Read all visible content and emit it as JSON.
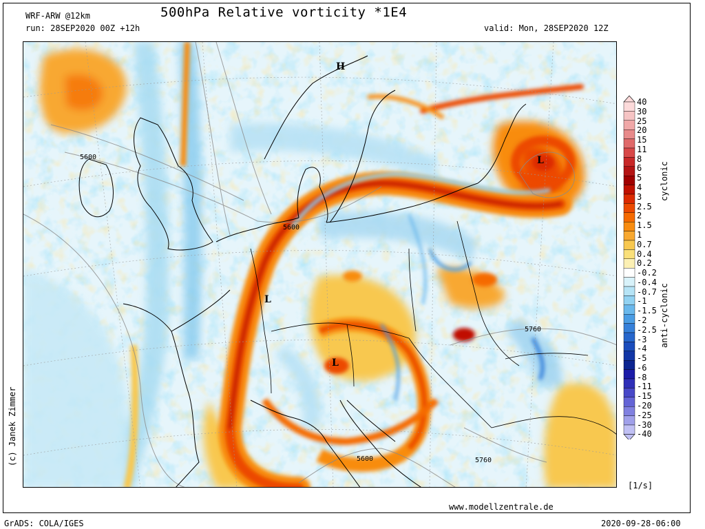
{
  "header": {
    "model": "WRF-ARW @12km",
    "title": "500hPa Relative vorticity *1E4",
    "run": "run: 28SEP2020 00Z +12h",
    "valid": "valid: Mon, 28SEP2020 12Z"
  },
  "map": {
    "pressure_marks": [
      {
        "text": "H",
        "name": "high-pressure-label"
      },
      {
        "text": "L",
        "name": "low-pressure-label-baltic"
      },
      {
        "text": "L",
        "name": "low-pressure-label-france"
      },
      {
        "text": "L",
        "name": "low-pressure-label-alps"
      }
    ],
    "contour_labels": [
      "5600",
      "5600",
      "5760",
      "5600",
      "5760"
    ]
  },
  "legend": {
    "ticks": [
      "40",
      "30",
      "25",
      "20",
      "15",
      "11",
      "8",
      "6",
      "5",
      "4",
      "3",
      "2.5",
      "2",
      "1.5",
      "1",
      "0.7",
      "0.4",
      "0.2",
      "-0.2",
      "-0.4",
      "-0.7",
      "-1",
      "-1.5",
      "-2",
      "-2.5",
      "-3",
      "-4",
      "-5",
      "-6",
      "-8",
      "-11",
      "-15",
      "-20",
      "-25",
      "-30",
      "-40"
    ],
    "colors": [
      "#fcdada",
      "#f6c4c4",
      "#f0a8a8",
      "#e88a8a",
      "#e06a6a",
      "#d84848",
      "#c82828",
      "#b41414",
      "#a00000",
      "#c01000",
      "#dc2a00",
      "#ec4a00",
      "#f56a00",
      "#f88c10",
      "#f8a830",
      "#f8c850",
      "#fae07a",
      "#fcf0b4",
      "#ffffff",
      "#d8f2fa",
      "#b6e4f6",
      "#92d2f2",
      "#6ab8ec",
      "#4a9ce4",
      "#3680da",
      "#2666cc",
      "#1a4cbc",
      "#1236a6",
      "#0c2490",
      "#1c1ca8",
      "#2f2fb8",
      "#4848c8",
      "#6464d6",
      "#8080e0",
      "#a0a0ea",
      "#c0c0f4"
    ],
    "cyclonic_label": "cyclonic",
    "anticyclonic_label": "anti-cyclonic",
    "unit": "[1/s]"
  },
  "footer": {
    "credit": "(c) Janek Zimmer",
    "website": "www.modellzentrale.de",
    "grads": "GrADS: COLA/IGES",
    "timestamp": "2020-09-28-06:00"
  }
}
